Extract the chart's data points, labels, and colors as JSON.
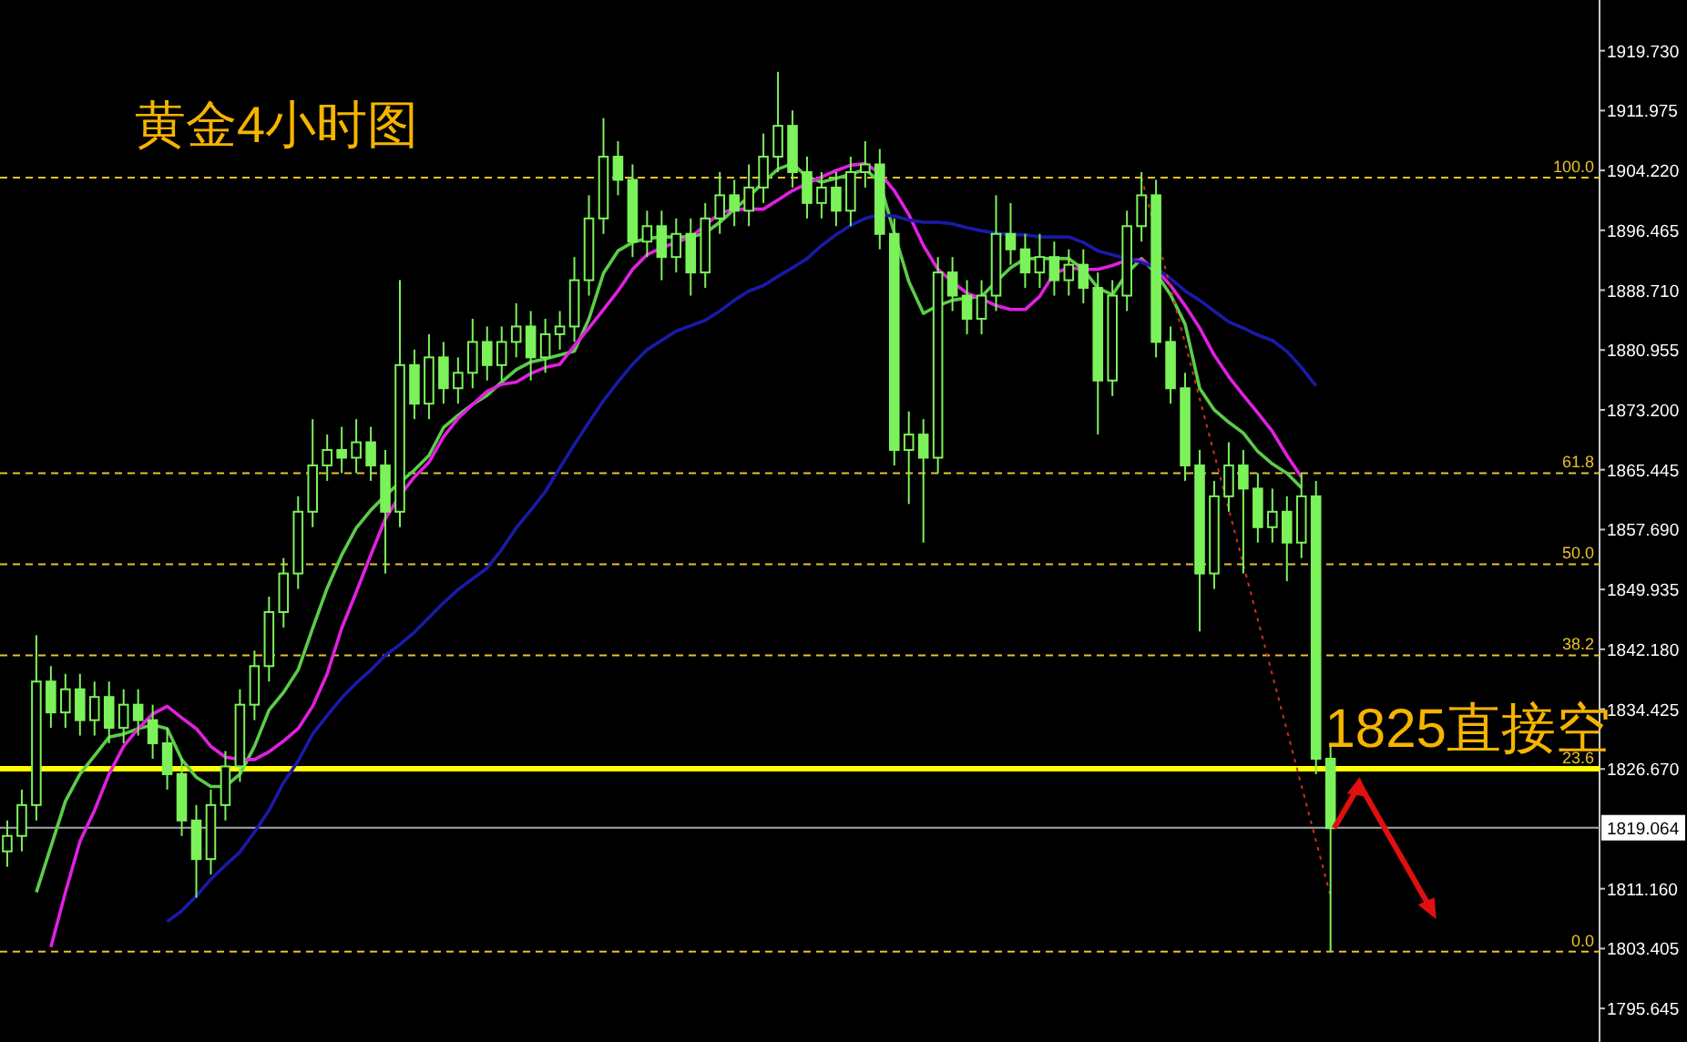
{
  "chart_data": {
    "type": "candlestick",
    "title": "黄金4小时图",
    "annotations": [
      "1825直接空",
      {
        "text": "100.0",
        "y": 1903.3
      },
      {
        "text": "61.8",
        "y": 1865.0
      },
      {
        "text": "50.0",
        "y": 1853.2
      },
      {
        "text": "38.2",
        "y": 1841.4
      },
      {
        "text": "23.6",
        "y": 1826.7
      },
      {
        "text": "0.0",
        "y": 1803.0
      }
    ],
    "color": "#7cf25a",
    "tick_labels": "y",
    "categories": [
      null,
      null,
      null,
      null,
      null,
      null,
      null,
      null,
      null,
      null,
      null,
      null,
      null,
      null,
      null,
      null,
      null,
      null,
      null,
      null,
      null,
      null,
      null,
      null,
      null,
      null,
      null,
      null,
      null,
      null,
      null,
      null,
      null,
      null,
      null,
      null,
      null,
      null,
      null,
      null,
      null,
      null,
      null,
      null,
      null,
      null,
      null,
      null,
      null,
      null,
      null,
      null,
      null,
      null,
      null,
      null,
      null,
      null,
      null,
      null,
      null,
      null,
      null,
      null,
      null,
      null,
      null,
      null,
      null,
      null,
      null,
      null,
      null,
      null,
      null,
      null,
      null,
      null,
      null,
      null,
      null,
      null,
      null,
      null,
      null,
      null,
      null,
      null,
      null,
      null,
      null,
      null
    ],
    "ohlc": [
      [
        1816,
        1820,
        1814,
        1818
      ],
      [
        1818,
        1824,
        1816,
        1822
      ],
      [
        1822,
        1844,
        1820,
        1838
      ],
      [
        1838,
        1840,
        1832,
        1834
      ],
      [
        1834,
        1839,
        1832,
        1837
      ],
      [
        1837,
        1839,
        1831,
        1833
      ],
      [
        1833,
        1838,
        1831,
        1836
      ],
      [
        1836,
        1838,
        1830,
        1832
      ],
      [
        1832,
        1837,
        1830,
        1835
      ],
      [
        1835,
        1837,
        1831,
        1833
      ],
      [
        1833,
        1835,
        1828,
        1830
      ],
      [
        1830,
        1832,
        1824,
        1826
      ],
      [
        1826,
        1828,
        1818,
        1820
      ],
      [
        1820,
        1822,
        1810,
        1815
      ],
      [
        1815,
        1824,
        1813,
        1822
      ],
      [
        1822,
        1829,
        1820,
        1827
      ],
      [
        1827,
        1837,
        1825,
        1835
      ],
      [
        1835,
        1842,
        1833,
        1840
      ],
      [
        1840,
        1849,
        1838,
        1847
      ],
      [
        1847,
        1854,
        1845,
        1852
      ],
      [
        1852,
        1862,
        1850,
        1860
      ],
      [
        1860,
        1872,
        1858,
        1866
      ],
      [
        1866,
        1870,
        1864,
        1868
      ],
      [
        1868,
        1871,
        1865,
        1867
      ],
      [
        1867,
        1872,
        1865,
        1869
      ],
      [
        1869,
        1871,
        1864,
        1866
      ],
      [
        1866,
        1868,
        1852,
        1860
      ],
      [
        1860,
        1890,
        1858,
        1879
      ],
      [
        1879,
        1881,
        1872,
        1874
      ],
      [
        1874,
        1883,
        1872,
        1880
      ],
      [
        1880,
        1882,
        1874,
        1876
      ],
      [
        1876,
        1880,
        1874,
        1878
      ],
      [
        1878,
        1885,
        1876,
        1882
      ],
      [
        1882,
        1884,
        1877,
        1879
      ],
      [
        1879,
        1884,
        1877,
        1882
      ],
      [
        1882,
        1887,
        1880,
        1884
      ],
      [
        1884,
        1886,
        1877,
        1880
      ],
      [
        1880,
        1885,
        1878,
        1883
      ],
      [
        1883,
        1886,
        1881,
        1884
      ],
      [
        1884,
        1893,
        1882,
        1890
      ],
      [
        1890,
        1901,
        1888,
        1898
      ],
      [
        1898,
        1911,
        1896,
        1906
      ],
      [
        1906,
        1908,
        1901,
        1903
      ],
      [
        1903,
        1905,
        1893,
        1895
      ],
      [
        1895,
        1899,
        1893,
        1897
      ],
      [
        1897,
        1899,
        1890,
        1893
      ],
      [
        1893,
        1898,
        1891,
        1896
      ],
      [
        1896,
        1898,
        1888,
        1891
      ],
      [
        1891,
        1900,
        1889,
        1898
      ],
      [
        1898,
        1904,
        1896,
        1901
      ],
      [
        1901,
        1903,
        1897,
        1899
      ],
      [
        1899,
        1905,
        1897,
        1902
      ],
      [
        1902,
        1909,
        1900,
        1906
      ],
      [
        1906,
        1917,
        1904,
        1910
      ],
      [
        1910,
        1912,
        1902,
        1904
      ],
      [
        1904,
        1906,
        1898,
        1900
      ],
      [
        1900,
        1904,
        1898,
        1902
      ],
      [
        1902,
        1904,
        1897,
        1899
      ],
      [
        1899,
        1906,
        1897,
        1904
      ],
      [
        1904,
        1908,
        1902,
        1905
      ],
      [
        1905,
        1907,
        1894,
        1896
      ],
      [
        1896,
        1898,
        1866,
        1868
      ],
      [
        1868,
        1873,
        1861,
        1870
      ],
      [
        1870,
        1872,
        1856,
        1867
      ],
      [
        1867,
        1893,
        1865,
        1891
      ],
      [
        1891,
        1893,
        1886,
        1888
      ],
      [
        1888,
        1890,
        1883,
        1885
      ],
      [
        1885,
        1890,
        1883,
        1888
      ],
      [
        1888,
        1901,
        1886,
        1896
      ],
      [
        1896,
        1900,
        1892,
        1894
      ],
      [
        1894,
        1896,
        1889,
        1891
      ],
      [
        1891,
        1896,
        1889,
        1893
      ],
      [
        1893,
        1895,
        1888,
        1890
      ],
      [
        1890,
        1894,
        1888,
        1892
      ],
      [
        1892,
        1894,
        1887,
        1889
      ],
      [
        1889,
        1891,
        1870,
        1877
      ],
      [
        1877,
        1890,
        1875,
        1888
      ],
      [
        1888,
        1899,
        1886,
        1897
      ],
      [
        1897,
        1904,
        1895,
        1901
      ],
      [
        1901,
        1903,
        1880,
        1882
      ],
      [
        1882,
        1884,
        1874,
        1876
      ],
      [
        1876,
        1878,
        1864,
        1866
      ],
      [
        1866,
        1868,
        1844.5,
        1852
      ],
      [
        1852,
        1864,
        1850,
        1862
      ],
      [
        1862,
        1869,
        1860,
        1866
      ],
      [
        1866,
        1868,
        1852,
        1863
      ],
      [
        1863,
        1865,
        1856,
        1858
      ],
      [
        1858,
        1863,
        1856,
        1860
      ],
      [
        1860,
        1862,
        1851,
        1856
      ],
      [
        1856,
        1865,
        1854,
        1862
      ],
      [
        1862,
        1864,
        1826,
        1828
      ],
      [
        1828,
        1830,
        1803,
        1819
      ]
    ],
    "series": [
      {
        "type": "line",
        "color": "#5ccc4a",
        "values": [
          null,
          null,
          1810.7,
          1816.6,
          1822.5,
          1826.0,
          1828.4,
          1830.8,
          1831.2,
          1831.9,
          1832.4,
          1831.9,
          1827.9,
          1825.6,
          1824.4,
          1824.4,
          1826.0,
          1829.6,
          1834.3,
          1836.6,
          1839.5,
          1844.9,
          1850.1,
          1854.4,
          1857.9,
          1860.2,
          1862.1,
          1863.8,
          1865.4,
          1867.3,
          1870.9,
          1872.5,
          1873.9,
          1875.1,
          1876.8,
          1878.4,
          1879.4,
          1879.8,
          1880.3,
          1880.8,
          1885.0,
          1890.9,
          1893.8,
          1894.9,
          1895.4,
          1895.6,
          1895.6,
          1895.6,
          1896.1,
          1897.5,
          1899.2,
          1900.8,
          1902.7,
          1904.4,
          1905.1,
          1903.4,
          1902.7,
          1903.2,
          1903.7,
          1904.4,
          1902.7,
          1896.1,
          1889.8,
          1885.7,
          1886.7,
          1887.4,
          1887.7,
          1887.9,
          1889.8,
          1891.6,
          1892.8,
          1892.8,
          1892.8,
          1892.8,
          1891.4,
          1889.0,
          1888.1,
          1890.9,
          1892.8,
          1890.9,
          1888.1,
          1884.3,
          1876.0,
          1873.2,
          1871.6,
          1870.2,
          1867.8,
          1866.2,
          1865.0,
          1863.1,
          null,
          null
        ]
      },
      {
        "type": "line",
        "color": "#e020e0",
        "values": [
          null,
          null,
          null,
          1803.6,
          1810.7,
          1817.3,
          1821.3,
          1826.0,
          1829.6,
          1831.9,
          1833.8,
          1834.8,
          1833.3,
          1831.9,
          1829.6,
          1828.2,
          1827.9,
          1827.9,
          1828.9,
          1830.3,
          1831.9,
          1834.8,
          1839.0,
          1844.9,
          1849.6,
          1854.4,
          1859.1,
          1862.1,
          1864.5,
          1866.4,
          1869.7,
          1872.1,
          1873.9,
          1875.6,
          1876.5,
          1876.8,
          1877.9,
          1878.7,
          1879.1,
          1881.5,
          1883.8,
          1886.2,
          1888.6,
          1891.4,
          1893.3,
          1894.2,
          1894.9,
          1895.6,
          1897.1,
          1898.7,
          1899.2,
          1899.2,
          1899.2,
          1900.4,
          1901.6,
          1902.5,
          1903.4,
          1904.2,
          1904.9,
          1905.1,
          1903.9,
          1901.6,
          1898.5,
          1894.5,
          1891.4,
          1889.8,
          1888.3,
          1887.6,
          1886.7,
          1886.2,
          1886.2,
          1887.9,
          1890.9,
          1891.6,
          1891.4,
          1891.4,
          1891.9,
          1892.6,
          1892.6,
          1891.4,
          1889.3,
          1886.7,
          1883.8,
          1880.3,
          1877.5,
          1875.1,
          1872.8,
          1870.4,
          1867.3,
          1864.5,
          null,
          null
        ]
      },
      {
        "type": "line",
        "color": "#1a1aa8",
        "values": [
          null,
          null,
          null,
          null,
          null,
          null,
          null,
          null,
          null,
          null,
          null,
          1806.9,
          1808.3,
          1810.2,
          1812.4,
          1814.2,
          1815.9,
          1818.5,
          1821.3,
          1824.9,
          1827.7,
          1831.2,
          1833.6,
          1835.9,
          1837.8,
          1839.5,
          1841.4,
          1842.8,
          1844.4,
          1846.3,
          1848.2,
          1849.9,
          1851.3,
          1852.7,
          1855.1,
          1857.9,
          1860.2,
          1862.6,
          1865.7,
          1868.7,
          1871.6,
          1874.4,
          1876.8,
          1879.1,
          1881.0,
          1882.2,
          1883.4,
          1884.1,
          1884.8,
          1886.0,
          1887.4,
          1888.6,
          1889.3,
          1890.5,
          1891.6,
          1892.8,
          1894.5,
          1895.9,
          1897.1,
          1898.0,
          1898.5,
          1898.3,
          1897.8,
          1897.5,
          1897.5,
          1897.3,
          1896.8,
          1896.4,
          1896.1,
          1895.9,
          1895.9,
          1895.6,
          1895.6,
          1895.6,
          1894.9,
          1893.8,
          1893.3,
          1892.8,
          1892.3,
          1891.6,
          1890.2,
          1888.6,
          1887.4,
          1886.0,
          1884.6,
          1883.8,
          1882.9,
          1882.2,
          1880.8,
          1878.7,
          1876.3,
          null
        ]
      },
      {
        "type": "line",
        "color": "#d03020",
        "line_style": "dotted",
        "values": [
          null,
          null,
          null,
          null,
          null,
          null,
          null,
          null,
          null,
          null,
          null,
          null,
          null,
          null,
          null,
          null,
          null,
          null,
          null,
          null,
          null,
          null,
          null,
          null,
          null,
          null,
          null,
          null,
          null,
          null,
          null,
          null,
          null,
          null,
          null,
          null,
          null,
          null,
          null,
          null,
          null,
          null,
          null,
          null,
          null,
          null,
          null,
          null,
          null,
          null,
          null,
          null,
          null,
          null,
          null,
          null,
          null,
          null,
          null,
          null,
          null,
          null,
          null,
          null,
          null,
          null,
          null,
          null,
          null,
          null,
          null,
          null,
          null,
          null,
          null,
          null,
          null,
          null,
          1903.3,
          null,
          null,
          null,
          null,
          null,
          null,
          null,
          null,
          null,
          null,
          null,
          null,
          1810.2
        ]
      }
    ],
    "ref_lines": [
      {
        "axis": "y",
        "value": 1903.3,
        "color": "#e8c030",
        "line_style": "dashed"
      },
      {
        "axis": "y",
        "value": 1865.0,
        "color": "#e8c030",
        "line_style": "dashed"
      },
      {
        "axis": "y",
        "value": 1853.2,
        "color": "#e8c030",
        "line_style": "dashed"
      },
      {
        "axis": "y",
        "value": 1841.4,
        "color": "#e8c030",
        "line_style": "dashed"
      },
      {
        "axis": "y",
        "value": 1803.0,
        "color": "#e8c030",
        "line_style": "dashed"
      },
      {
        "axis": "y",
        "value": 1826.7,
        "color": "#ffff00",
        "line_style": "solid"
      },
      {
        "axis": "y",
        "value": 1819.064,
        "label": "1819.064",
        "color": "#a0a8b0",
        "line_style": "solid"
      }
    ],
    "ylim": [
      1791.3,
      1926.3
    ],
    "yticks": [
      {
        "value": 1919.73,
        "label": "1919.730"
      },
      1911.975,
      {
        "value": 1904.22,
        "label": "1904.220"
      },
      1896.465,
      {
        "value": 1888.71,
        "label": "1888.710"
      },
      1880.955,
      {
        "value": 1873.2,
        "label": "1873.200"
      },
      1865.445,
      {
        "value": 1857.69,
        "label": "1857.690"
      },
      1849.935,
      {
        "value": 1842.18,
        "label": "1842.180"
      },
      1834.425,
      {
        "value": 1826.67,
        "label": "1826.670"
      },
      {
        "value": 1811.16,
        "label": "1811.160"
      },
      1803.405,
      1795.645
    ]
  }
}
